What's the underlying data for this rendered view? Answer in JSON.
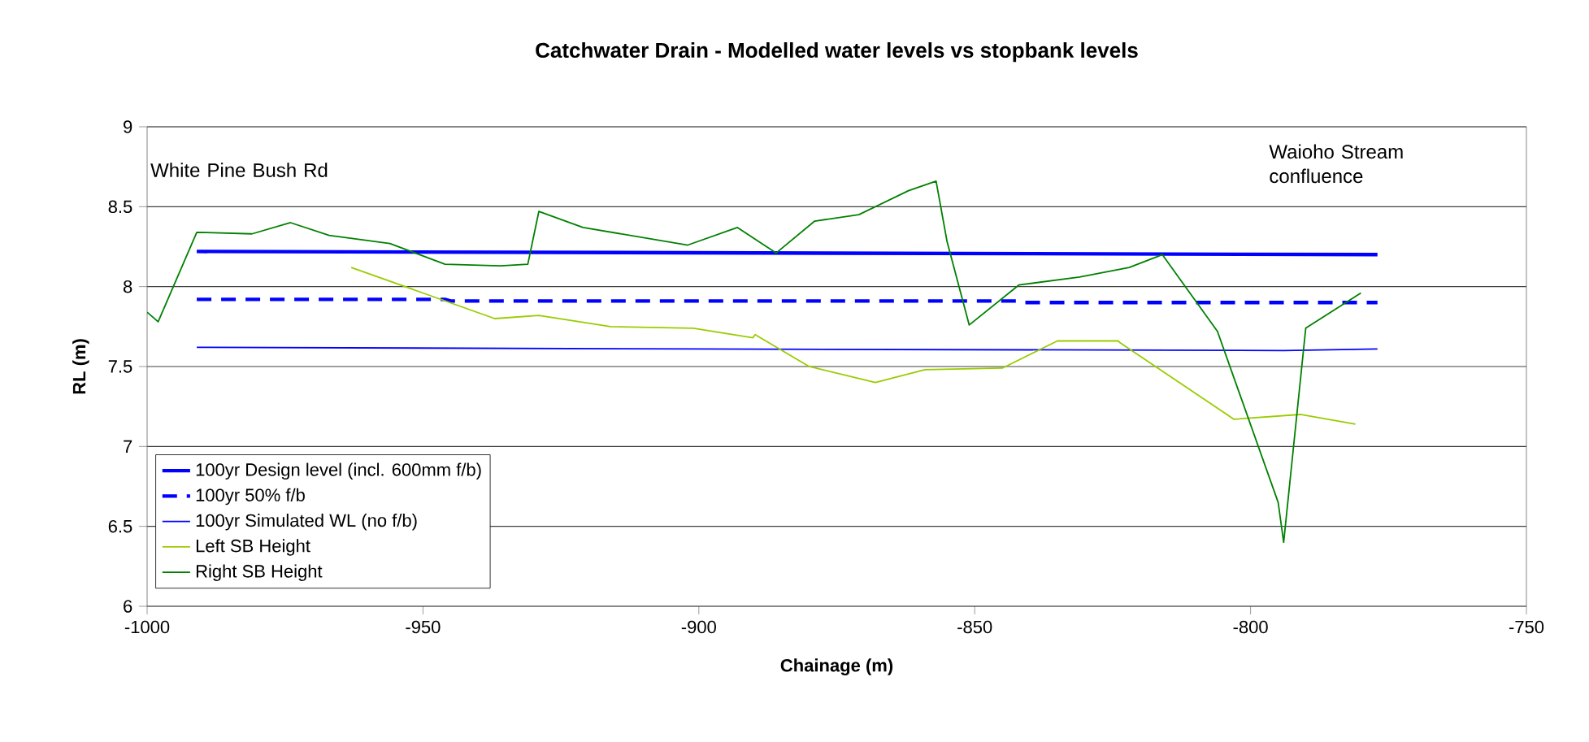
{
  "chart_data": {
    "type": "line",
    "title": "Catchwater Drain - Modelled water levels vs stopbank levels",
    "xlabel": "Chainage (m)",
    "ylabel": "RL (m)",
    "xlim": [
      -1000,
      -750
    ],
    "xticks": [
      -1000,
      -950,
      -900,
      -850,
      -800,
      -750
    ],
    "ylim": [
      6,
      9
    ],
    "yticks": [
      6,
      6.5,
      7,
      7.5,
      8,
      8.5,
      9
    ],
    "grid": "y",
    "legend": "bottom left",
    "marker": "none",
    "annotations": [
      "White Pine Bush Rd",
      "Waioho Stream confluence"
    ],
    "series": [
      {
        "name": "100yr Design level (incl. 600mm f/b)",
        "color": "#0000ff",
        "line_style": "solid",
        "x": [
          -991,
          -777
        ],
        "values": [
          8.22,
          8.2
        ]
      },
      {
        "name": "100yr 50% f/b",
        "color": "#0000ff",
        "line_style": "dashed",
        "x": [
          -991,
          -946,
          -945,
          -842,
          -841,
          -777
        ],
        "values": [
          7.92,
          7.92,
          7.91,
          7.91,
          7.9,
          7.9
        ]
      },
      {
        "name": "100yr Simulated WL (no f/b)",
        "color": "#0000ff",
        "line_style": "solid",
        "x": [
          -991,
          -900,
          -794,
          -777
        ],
        "values": [
          7.62,
          7.61,
          7.6,
          7.61
        ]
      },
      {
        "name": "Left SB Height",
        "color": "#99cc00",
        "line_style": "solid",
        "x": [
          -963,
          -937,
          -929,
          -916,
          -901,
          -890.2,
          -889.8,
          -880,
          -868,
          -859,
          -845,
          -835,
          -824,
          -823.7,
          -803,
          -791,
          -781
        ],
        "values": [
          8.12,
          7.8,
          7.82,
          7.75,
          7.74,
          7.68,
          7.7,
          7.5,
          7.4,
          7.48,
          7.49,
          7.66,
          7.66,
          7.65,
          7.17,
          7.2,
          7.14
        ]
      },
      {
        "name": "Right SB Height",
        "color": "#008000",
        "line_style": "solid",
        "x": [
          -1000,
          -998,
          -991,
          -981,
          -974,
          -967,
          -956,
          -946,
          -936,
          -931,
          -929,
          -921,
          -902,
          -893,
          -886,
          -879,
          -871,
          -862,
          -857,
          -855,
          -851,
          -842,
          -831,
          -822,
          -816,
          -806,
          -795,
          -794,
          -790,
          -780
        ],
        "values": [
          7.84,
          7.78,
          8.34,
          8.33,
          8.4,
          8.32,
          8.27,
          8.14,
          8.13,
          8.14,
          8.47,
          8.37,
          8.26,
          8.37,
          8.21,
          8.41,
          8.45,
          8.6,
          8.66,
          8.28,
          7.76,
          8.01,
          8.06,
          8.12,
          8.2,
          7.72,
          6.65,
          6.4,
          7.74,
          7.96
        ]
      }
    ]
  }
}
